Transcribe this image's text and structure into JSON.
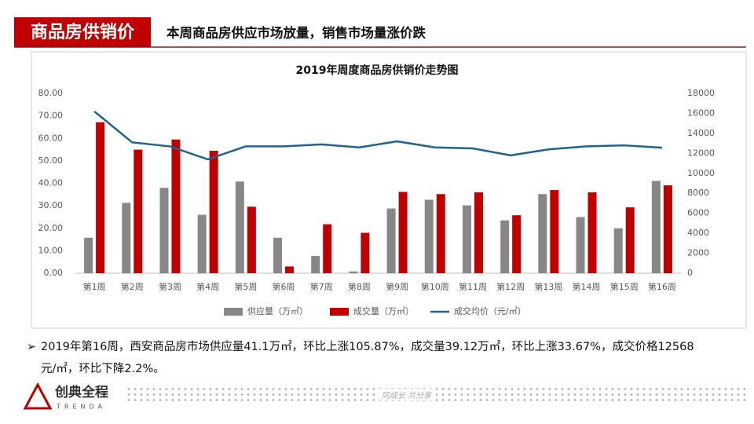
{
  "header": {
    "tag": "商品房供销价",
    "headline": "本周商品房供应市场放量，销售市场量涨价跌"
  },
  "chart_data": {
    "type": "bar-line",
    "title": "2019年周度商品房供销价走势图",
    "categories": [
      "第1周",
      "第2周",
      "第3周",
      "第4周",
      "第5周",
      "第6周",
      "第7周",
      "第8周",
      "第9周",
      "第10周",
      "第11周",
      "第12周",
      "第13周",
      "第14周",
      "第15周",
      "第16周"
    ],
    "series": [
      {
        "name": "供应量（万㎡）",
        "color": "#878787",
        "type": "bar",
        "values": [
          15.8,
          31.3,
          38.0,
          26.0,
          40.8,
          15.8,
          7.7,
          0.8,
          28.8,
          32.7,
          30.2,
          23.5,
          35.2,
          25.0,
          20.0,
          41.1
        ]
      },
      {
        "name": "成交量（万㎡）",
        "color": "#c00000",
        "type": "bar",
        "values": [
          67.2,
          55.0,
          59.5,
          54.5,
          29.6,
          3.0,
          21.8,
          18.0,
          36.2,
          35.2,
          36.0,
          25.8,
          37.0,
          36.0,
          29.3,
          39.12
        ]
      },
      {
        "name": "成交均价（元/㎡）",
        "color": "#1f6391",
        "type": "line",
        "axis": "y2",
        "values": [
          16200,
          13100,
          12700,
          11400,
          12700,
          12700,
          12900,
          12600,
          13200,
          12600,
          12500,
          11800,
          12400,
          12700,
          12800,
          12568
        ]
      }
    ],
    "ylim": [
      0,
      80
    ],
    "yticks": [
      {
        "value": 0,
        "label": "0.00"
      },
      {
        "value": 10,
        "label": "10.00"
      },
      {
        "value": 20,
        "label": "20.00"
      },
      {
        "value": 30,
        "label": "30.00"
      },
      {
        "value": 40,
        "label": "40.00"
      },
      {
        "value": 50,
        "label": "50.00"
      },
      {
        "value": 60,
        "label": "60.00"
      },
      {
        "value": 70,
        "label": "70.00"
      },
      {
        "value": 80,
        "label": "80.00"
      }
    ],
    "y2lim": [
      0,
      18000
    ],
    "y2ticks": [
      0,
      2000,
      4000,
      6000,
      8000,
      10000,
      12000,
      14000,
      16000,
      18000
    ],
    "legend": "bottom"
  },
  "bullet": "2019年第16周，西安商品房市场供应量41.1万㎡，环比上涨105.87%，成交量39.12万㎡，环比上涨33.67%，成交价格12568元/㎡，环比下降2.2%。",
  "footer": {
    "brand": "创典全程",
    "brand_en": "TRENDA",
    "slogan": "同成长 共分享"
  }
}
